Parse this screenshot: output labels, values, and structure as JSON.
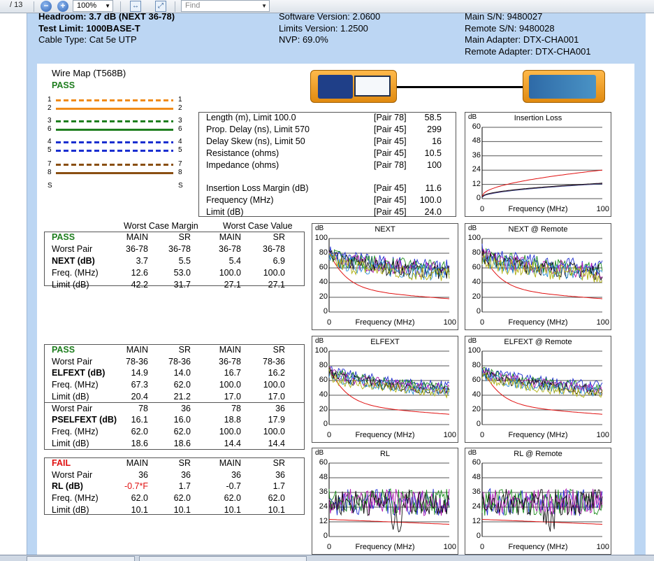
{
  "toolbar": {
    "page_total": "/ 13",
    "zoom_value": "100%",
    "find_placeholder": "Find",
    "zoom_out": "−",
    "zoom_in": "+"
  },
  "header": {
    "left": [
      "Headroom: 3.7 dB (NEXT 36-78)",
      "Test Limit: 1000BASE-T",
      "Cable Type: Cat 5e UTP"
    ],
    "mid": [
      "Software Version: 2.0600",
      "Limits Version: 1.2500",
      "NVP: 69.0%"
    ],
    "right": [
      "Main S/N: 9480027",
      "Remote S/N: 9480028",
      "Main Adapter: DTX-CHA001",
      "Remote Adapter: DTX-CHA001"
    ]
  },
  "wiremap": {
    "title": "Wire Map (T568B)",
    "result": "PASS",
    "left_nums": [
      "1",
      "2",
      "3",
      "6",
      "4",
      "5",
      "7",
      "8",
      "S"
    ],
    "right_nums": [
      "1",
      "2",
      "3",
      "6",
      "4",
      "5",
      "7",
      "8",
      "S"
    ],
    "pair_colors": [
      "#f08c1a",
      "#1f7f1f",
      "#1a2fd0",
      "#8a4f12"
    ]
  },
  "summary": {
    "rows": [
      {
        "label": "Length (m), Limit 100.0",
        "pair": "[Pair 78]",
        "value": "58.5"
      },
      {
        "label": "Prop. Delay (ns), Limit 570",
        "pair": "[Pair 45]",
        "value": "299"
      },
      {
        "label": "Delay Skew (ns), Limit 50",
        "pair": "[Pair 45]",
        "value": "16"
      },
      {
        "label": "Resistance (ohms)",
        "pair": "[Pair 45]",
        "value": "10.5"
      },
      {
        "label": "Impedance (ohms)",
        "pair": "[Pair 78]",
        "value": "100"
      },
      {
        "label": "Insertion Loss Margin (dB)",
        "pair": "[Pair 45]",
        "value": "11.6"
      },
      {
        "label": "Frequency (MHz)",
        "pair": "[Pair 45]",
        "value": "100.0"
      },
      {
        "label": "Limit (dB)",
        "pair": "[Pair 45]",
        "value": "24.0"
      }
    ]
  },
  "next_table": {
    "hdr_margin": "Worst Case Margin",
    "hdr_value": "Worst Case Value",
    "result": "PASS",
    "cols": [
      "MAIN",
      "SR",
      "MAIN",
      "SR"
    ],
    "rows": [
      {
        "label": "Worst Pair",
        "bold": false,
        "vals": [
          "36-78",
          "36-78",
          "36-78",
          "36-78"
        ]
      },
      {
        "label": "NEXT (dB)",
        "bold": true,
        "vals": [
          "3.7",
          "5.5",
          "5.4",
          "6.9"
        ]
      },
      {
        "label": "Freq. (MHz)",
        "bold": false,
        "vals": [
          "12.6",
          "53.0",
          "100.0",
          "100.0"
        ]
      },
      {
        "label": "Limit (dB)",
        "bold": false,
        "vals": [
          "42.2",
          "31.7",
          "27.1",
          "27.1"
        ]
      }
    ]
  },
  "elfext_table": {
    "result": "PASS",
    "cols": [
      "MAIN",
      "SR",
      "MAIN",
      "SR"
    ],
    "rows": [
      {
        "label": "Worst Pair",
        "bold": false,
        "vals": [
          "78-36",
          "78-36",
          "36-78",
          "78-36"
        ]
      },
      {
        "label": "ELFEXT (dB)",
        "bold": true,
        "vals": [
          "14.9",
          "14.0",
          "16.7",
          "16.2"
        ]
      },
      {
        "label": "Freq. (MHz)",
        "bold": false,
        "vals": [
          "67.3",
          "62.0",
          "100.0",
          "100.0"
        ]
      },
      {
        "label": "Limit (dB)",
        "bold": false,
        "vals": [
          "20.4",
          "21.2",
          "17.0",
          "17.0"
        ]
      },
      {
        "label": "Worst Pair",
        "bold": false,
        "vals": [
          "78",
          "36",
          "78",
          "36"
        ]
      },
      {
        "label": "PSELFEXT (dB)",
        "bold": true,
        "vals": [
          "16.1",
          "16.0",
          "18.8",
          "17.9"
        ]
      },
      {
        "label": "Freq. (MHz)",
        "bold": false,
        "vals": [
          "62.0",
          "62.0",
          "100.0",
          "100.0"
        ]
      },
      {
        "label": "Limit (dB)",
        "bold": false,
        "vals": [
          "18.6",
          "18.6",
          "14.4",
          "14.4"
        ]
      }
    ]
  },
  "rl_table": {
    "result": "FAIL",
    "cols": [
      "MAIN",
      "SR",
      "MAIN",
      "SR"
    ],
    "rows": [
      {
        "label": "Worst Pair",
        "bold": false,
        "vals": [
          "36",
          "36",
          "36",
          "36"
        ]
      },
      {
        "label": "RL (dB)",
        "bold": true,
        "vals": [
          "-0.7*F",
          "1.7",
          "-0.7",
          "1.7"
        ]
      },
      {
        "label": "Freq. (MHz)",
        "bold": false,
        "vals": [
          "62.0",
          "62.0",
          "62.0",
          "62.0"
        ]
      },
      {
        "label": "Limit (dB)",
        "bold": false,
        "vals": [
          "10.1",
          "10.1",
          "10.1",
          "10.1"
        ]
      }
    ]
  },
  "chart_data": [
    {
      "type": "line",
      "title": "Insertion Loss",
      "ylabel": "dB",
      "xlabel": "Frequency (MHz)",
      "ylim": [
        0,
        60
      ],
      "yticks": [
        0,
        12,
        24,
        36,
        48,
        60
      ],
      "xticks": [
        "0",
        "100"
      ],
      "kind": "il"
    },
    {
      "type": "line",
      "title": "NEXT",
      "ylabel": "dB",
      "xlabel": "Frequency (MHz)",
      "ylim": [
        0,
        100
      ],
      "yticks": [
        0,
        20,
        40,
        60,
        80,
        100
      ],
      "xticks": [
        "0",
        "100"
      ],
      "kind": "next"
    },
    {
      "type": "line",
      "title": "NEXT @ Remote",
      "ylabel": "dB",
      "xlabel": "Frequency (MHz)",
      "ylim": [
        0,
        100
      ],
      "yticks": [
        0,
        20,
        40,
        60,
        80,
        100
      ],
      "xticks": [
        "0",
        "100"
      ],
      "kind": "next"
    },
    {
      "type": "line",
      "title": "ELFEXT",
      "ylabel": "dB",
      "xlabel": "Frequency (MHz)",
      "ylim": [
        0,
        100
      ],
      "yticks": [
        0,
        20,
        40,
        60,
        80,
        100
      ],
      "xticks": [
        "0",
        "100"
      ],
      "kind": "elfext"
    },
    {
      "type": "line",
      "title": "ELFEXT @ Remote",
      "ylabel": "dB",
      "xlabel": "Frequency (MHz)",
      "ylim": [
        0,
        100
      ],
      "yticks": [
        0,
        20,
        40,
        60,
        80,
        100
      ],
      "xticks": [
        "0",
        "100"
      ],
      "kind": "elfext"
    },
    {
      "type": "line",
      "title": "RL",
      "ylabel": "dB",
      "xlabel": "Frequency (MHz)",
      "ylim": [
        0,
        60
      ],
      "yticks": [
        0,
        12,
        24,
        36,
        48,
        60
      ],
      "xticks": [
        "0",
        "100"
      ],
      "kind": "rl"
    },
    {
      "type": "line",
      "title": "RL @ Remote",
      "ylabel": "dB",
      "xlabel": "Frequency (MHz)",
      "ylim": [
        0,
        60
      ],
      "yticks": [
        0,
        12,
        24,
        36,
        48,
        60
      ],
      "xticks": [
        "0",
        "100"
      ],
      "kind": "rl"
    }
  ]
}
